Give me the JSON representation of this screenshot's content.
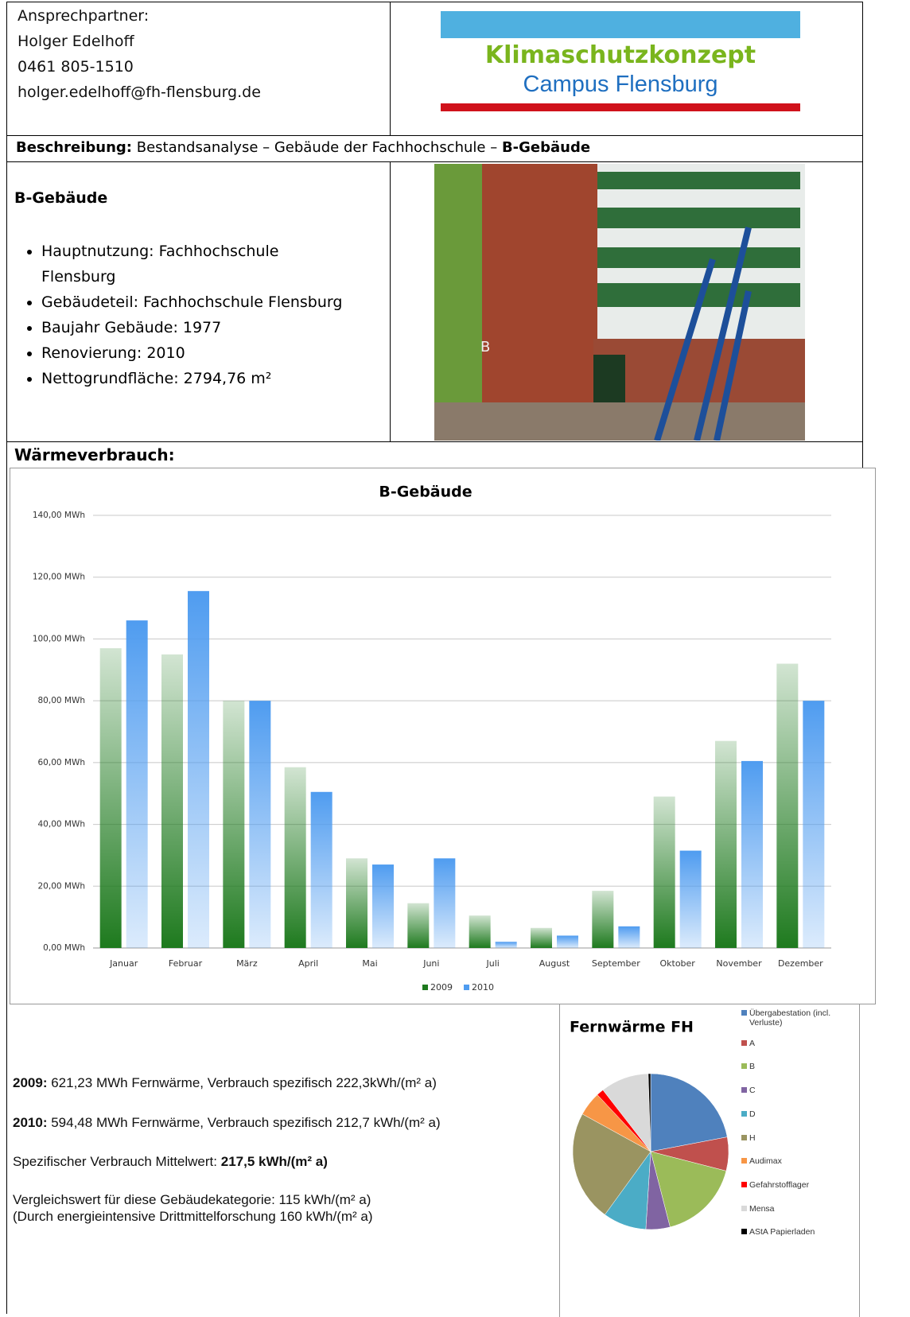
{
  "contact": {
    "title": "Ansprechpartner:",
    "name": "Holger Edelhoff",
    "phone": "0461 805-1510",
    "email": "holger.edelhoff@fh-flensburg.de"
  },
  "logo": {
    "line1": "Klimaschutzkonzept",
    "line2": "Campus Flensburg"
  },
  "description": {
    "label": "Beschreibung:",
    "text": "Bestandsanalyse – Gebäude der Fachhochschule –",
    "bold": "B-Gebäude"
  },
  "building": {
    "title": "B-Gebäude",
    "items": [
      "Hauptnutzung: Fachhochschule Flensburg",
      "Gebäudeteil: Fachhochschule Flensburg",
      "Baujahr Gebäude: 1977",
      "Renovierung: 2010",
      "Nettogrundfläche: 2794,76 m²"
    ]
  },
  "section_title": "Wärmeverbrauch:",
  "chart_data": [
    {
      "type": "bar",
      "title": "B-Gebäude",
      "categories": [
        "Januar",
        "Februar",
        "März",
        "April",
        "Mai",
        "Juni",
        "Juli",
        "August",
        "September",
        "Oktober",
        "November",
        "Dezember"
      ],
      "series": [
        {
          "name": "2009",
          "color": "#1e7a1e",
          "values": [
            97,
            95,
            80,
            58.5,
            29,
            14.5,
            10.5,
            6.5,
            18.5,
            49,
            67,
            92
          ]
        },
        {
          "name": "2010",
          "color": "#4f9cf0",
          "values": [
            106,
            115.5,
            80,
            50.5,
            27,
            29,
            2,
            4,
            7,
            31.5,
            60.5,
            80
          ]
        }
      ],
      "ylim": [
        0,
        140
      ],
      "yticks": [
        {
          "value": 0,
          "label": "0,00 MWh"
        },
        {
          "value": 20,
          "label": "20,00 MWh"
        },
        {
          "value": 40,
          "label": "40,00 MWh"
        },
        {
          "value": 60,
          "label": "60,00 MWh"
        },
        {
          "value": 80,
          "label": "80,00 MWh"
        },
        {
          "value": 100,
          "label": "100,00 MWh"
        },
        {
          "value": 120,
          "label": "120,00 MWh"
        },
        {
          "value": 140,
          "label": "140,00 MWh"
        }
      ],
      "grid": true,
      "legend": "bottom"
    },
    {
      "type": "pie",
      "title": "Fernwärme FH",
      "categories": [
        "Übergabestation (incl. Verluste)",
        "A",
        "B",
        "C",
        "D",
        "H",
        "Audimax",
        "Gefahrstofflager",
        "Mensa",
        "AStA Papierladen"
      ],
      "values": [
        22,
        7,
        17,
        5,
        9,
        23,
        5,
        1.5,
        10,
        0.5
      ],
      "colors": [
        "#4f81bd",
        "#c0504d",
        "#9bbb59",
        "#8064a2",
        "#4bacc6",
        "#9a9461",
        "#f79646",
        "#ff0000",
        "#d9d9d9",
        "#000000"
      ],
      "legend": "right"
    }
  ],
  "summary": [
    {
      "bold": "2009:",
      "text": "621,23 MWh Fernwärme, Verbrauch spezifisch 222,3kWh/(m² a)"
    },
    {
      "bold": "2010:",
      "text": "594,48 MWh Fernwärme, Verbrauch spezifisch 212,7 kWh/(m² a)"
    },
    {
      "text": "Spezifischer Verbrauch Mittelwert:",
      "bold": "217,5 kWh/(m² a)"
    },
    {
      "lines": [
        "Vergleichswert für diese Gebäudekategorie: 115 kWh/(m² a)",
        "(Durch energieintensive Drittmittelforschung 160 kWh/(m² a)"
      ]
    }
  ]
}
